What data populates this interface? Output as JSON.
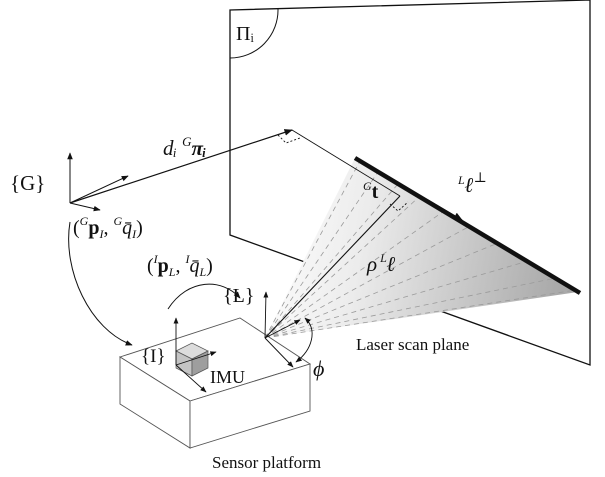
{
  "labels": {
    "plane": "Πᵢ",
    "global_frame": "{G}",
    "imu_frame": "{I}",
    "laser_frame": "{L}",
    "imu": "IMU",
    "distance_prefix": "dᵢ ",
    "distance_super": "G",
    "distance_vec": "πᵢ",
    "pose_g_open": "(",
    "pose_g_p": "G",
    "pose_g_pv": "p",
    "pose_g_psub": "I",
    "pose_g_q": "G",
    "pose_g_qv": "q̄",
    "pose_g_qsub": "I",
    "pose_g_close": ")",
    "pose_l_open": "(",
    "pose_l_p": "I",
    "pose_l_pv": "p",
    "pose_l_psub": "L",
    "pose_l_q": "I",
    "pose_l_qv": "q̄",
    "pose_l_qsub": "L",
    "pose_l_close": ")",
    "t_super": "G",
    "t_vec": "t",
    "lperp_super": "L",
    "lperp_vec": "ℓ",
    "lperp_mark": "⊥",
    "rho": "ρ",
    "rho_super": "L",
    "rho_vec": "ℓ",
    "phi": "ϕ",
    "scan_plane": "Laser scan plane",
    "platform": "Sensor platform"
  },
  "colors": {
    "stroke": "#111111",
    "fan_dark": "#a9a9a9",
    "fan_light": "#ffffff",
    "cube_top": "#dcdcdc",
    "cube_front": "#c4c4c4",
    "cube_side": "#9e9e9e"
  }
}
